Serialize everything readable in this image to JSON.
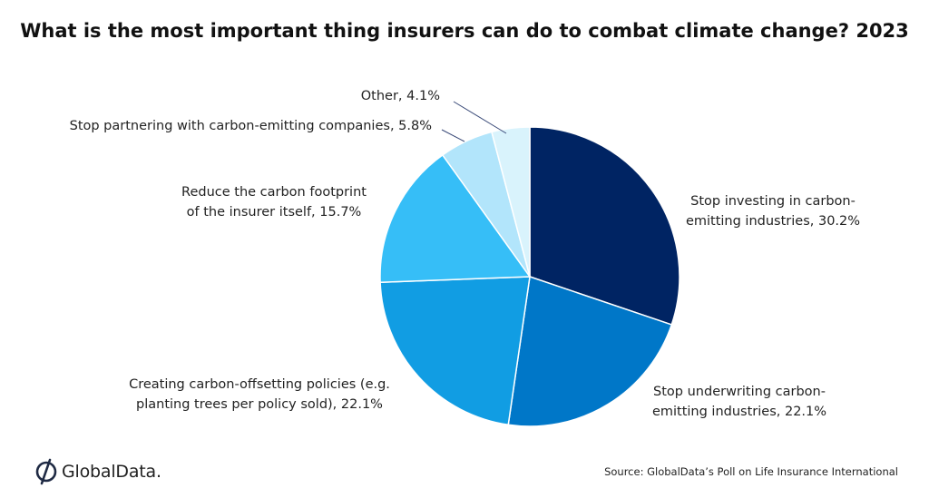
{
  "chart_data": {
    "type": "pie",
    "title": "What is the most important thing insurers can do to combat climate change? 2023",
    "slices": [
      {
        "label": [
          "Stop investing in carbon-",
          "emitting industries, 30.2%"
        ],
        "value": 30.2,
        "color": "#002463"
      },
      {
        "label": [
          "Stop underwriting carbon-",
          "emitting industries, 22.1%"
        ],
        "value": 22.1,
        "color": "#0077C8"
      },
      {
        "label": [
          "Creating carbon-offsetting policies (e.g.",
          "planting trees per policy sold), 22.1%"
        ],
        "value": 22.1,
        "color": "#119DE3"
      },
      {
        "label": [
          "Reduce the carbon footprint",
          "of the insurer itself, 15.7%"
        ],
        "value": 15.7,
        "color": "#36BEF7"
      },
      {
        "label": [
          "Stop partnering with carbon-emitting companies, 5.8%"
        ],
        "value": 5.8,
        "color": "#B2E5FB"
      },
      {
        "label": [
          "Other, 4.1%"
        ],
        "value": 4.1,
        "color": "#D9F3FC"
      }
    ]
  },
  "brand": {
    "name": "GlobalData."
  },
  "source": "Source: GlobalData’s Poll on Life Insurance International"
}
